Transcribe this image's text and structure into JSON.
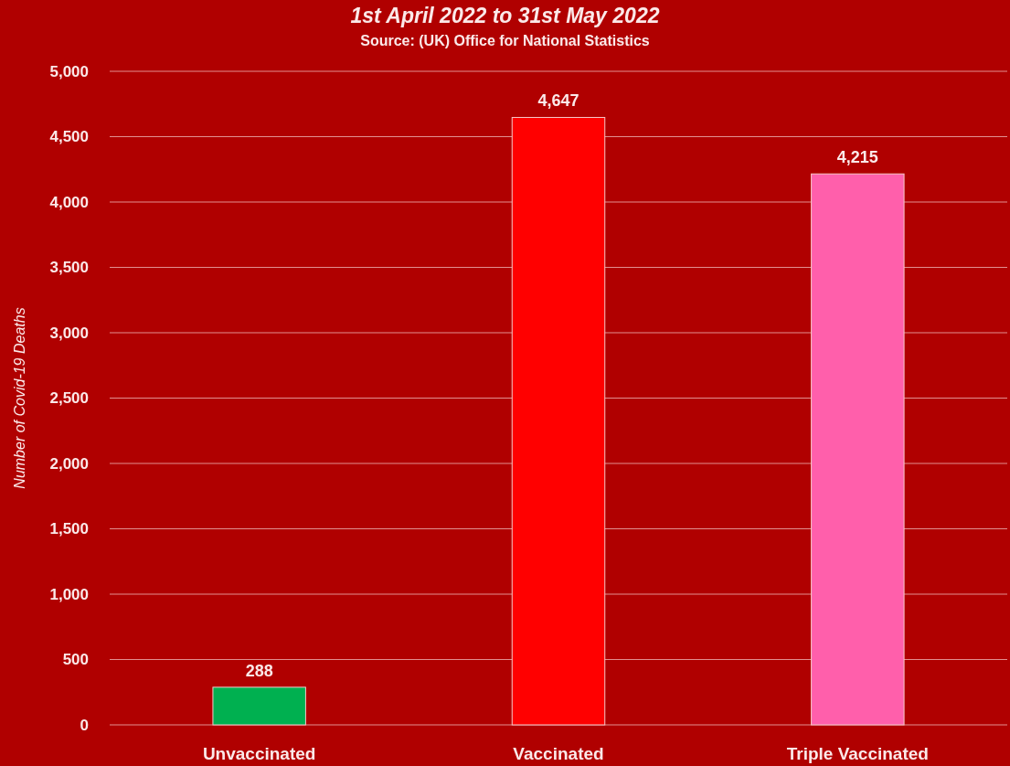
{
  "chart_data": {
    "type": "bar",
    "title": "1st April 2022 to 31st May 2022",
    "annotations": [
      "Source: (UK) Office for National Statistics"
    ],
    "ylabel": "Number of Covid-19 Deaths",
    "categories": [
      "Unvaccinated",
      "Vaccinated",
      "Triple Vaccinated"
    ],
    "values": [
      288,
      4647,
      4215
    ],
    "colors": [
      "#00b050",
      "#ff0000",
      "#ff5fab"
    ],
    "value_labels": [
      "288",
      "4,647",
      "4,215"
    ],
    "ylim": [
      0,
      5000
    ],
    "yticks": [
      0,
      500,
      {
        "value": 1000,
        "label": "1,000"
      },
      {
        "value": 1500,
        "label": "1,500"
      },
      {
        "value": 2000,
        "label": "2,000"
      },
      {
        "value": 2500,
        "label": "2,500"
      },
      {
        "value": 3000,
        "label": "3,000"
      },
      {
        "value": 3500,
        "label": "3,500"
      },
      {
        "value": 4000,
        "label": "4,000"
      },
      {
        "value": 4500,
        "label": "4,500"
      },
      {
        "value": 5000,
        "label": "5,000"
      }
    ],
    "grid": "y"
  }
}
